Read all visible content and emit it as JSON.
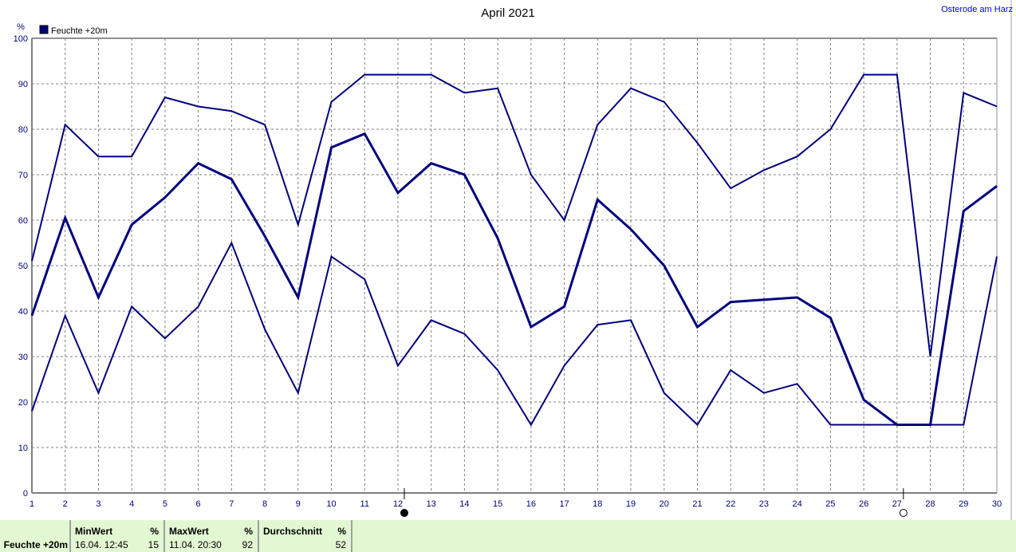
{
  "location": "Osterode am Harz",
  "chart_data": {
    "type": "line",
    "title": "April 2021",
    "ylabel": "%",
    "legend": {
      "entries": [
        "Feuchte +20m"
      ],
      "placement": "top-left",
      "color": "#000080"
    },
    "ylim": [
      0,
      100
    ],
    "yticks": [
      0,
      10,
      20,
      30,
      40,
      50,
      60,
      70,
      80,
      90,
      100
    ],
    "x": [
      1,
      2,
      3,
      4,
      5,
      6,
      7,
      8,
      9,
      10,
      11,
      12,
      13,
      14,
      15,
      16,
      17,
      18,
      19,
      20,
      21,
      22,
      23,
      24,
      25,
      26,
      27,
      28,
      29,
      30
    ],
    "grid": true,
    "moon_phases": [
      {
        "day": 12,
        "phase": "new-moon"
      },
      {
        "day": 27,
        "phase": "full-moon"
      }
    ],
    "series": [
      {
        "role": "max",
        "color": "#000080",
        "values": [
          51,
          81,
          74,
          74,
          87,
          85,
          84,
          81,
          59,
          86,
          92,
          92,
          92,
          88,
          89,
          70,
          60,
          81,
          89,
          86,
          77,
          67,
          71,
          74,
          80,
          92,
          92,
          30,
          88,
          85
        ]
      },
      {
        "role": "average",
        "color": "#000080",
        "values": [
          39,
          60.5,
          43,
          59,
          65,
          72.5,
          69,
          56.5,
          43,
          76,
          79,
          66,
          72.5,
          70,
          56,
          36.5,
          41,
          64.5,
          58,
          50,
          36.5,
          42,
          42.5,
          43,
          38.5,
          20.5,
          15,
          15,
          62,
          67.5
        ]
      },
      {
        "role": "min",
        "color": "#000080",
        "values": [
          18,
          39,
          22,
          41,
          34,
          41,
          55,
          36,
          22,
          52,
          47,
          28,
          38,
          35,
          27,
          15,
          28,
          37,
          38,
          22,
          15,
          27,
          22,
          24,
          15,
          15,
          15,
          15,
          15,
          52
        ]
      }
    ]
  },
  "footer": {
    "series_label": "Feuchte +20m",
    "min": {
      "header": "MinWert",
      "unit": "%",
      "time": "16.04.  12:45",
      "value": "15"
    },
    "max": {
      "header": "MaxWert",
      "unit": "%",
      "time": "11.04.  20:30",
      "value": "92"
    },
    "avg": {
      "header": "Durchschnitt",
      "unit": "%",
      "value": "52"
    }
  }
}
